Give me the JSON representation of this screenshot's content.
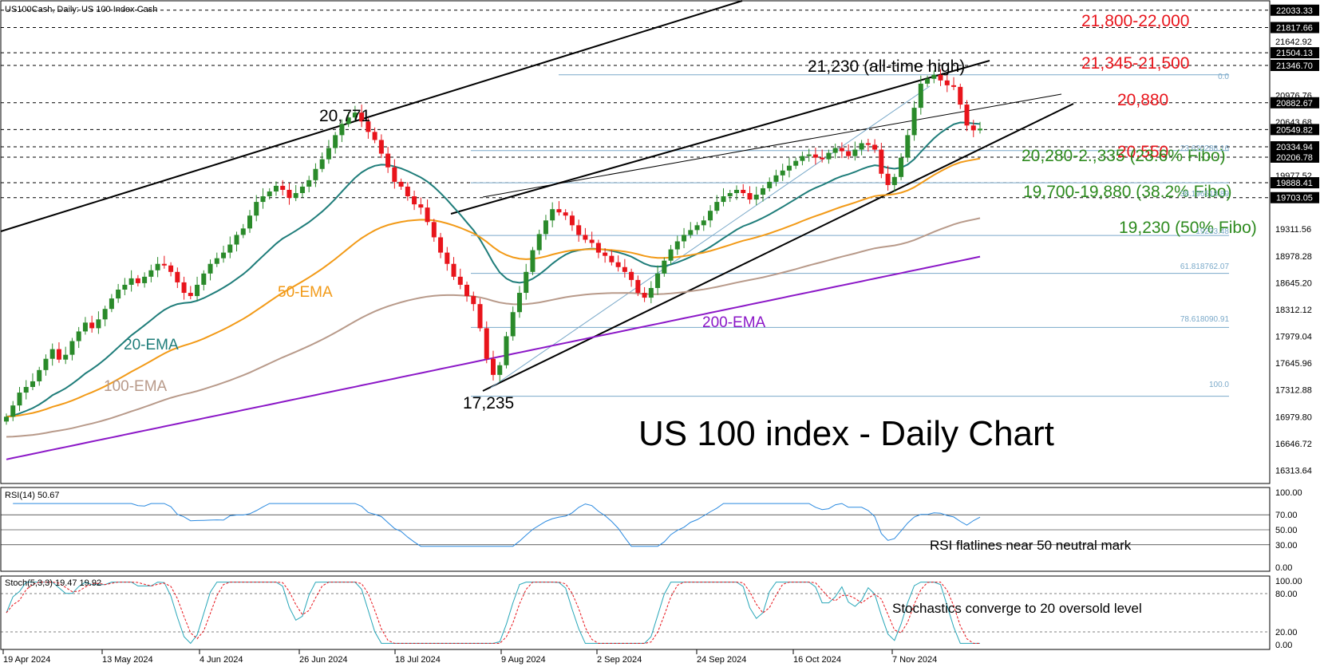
{
  "header": {
    "symbol_text": "US100Cash, Daily:  US 100 Index Cash"
  },
  "title": "US 100 index - Daily Chart",
  "colors": {
    "up": "#2a8a2a",
    "down": "#e8141b",
    "ema20": "#1f7d7a",
    "ema50": "#f29a17",
    "ema100": "#b89a8a",
    "ema200": "#8b17c7",
    "fib": "#7aa9c9",
    "rsi": "#2b8ae0",
    "stoch_main": "#27a6b8",
    "stoch_signal": "#e8141b"
  },
  "y_axis_labels": [
    "22033.33",
    "21817.66",
    "21642.92",
    "21504.13",
    "21346.70",
    "20976.76",
    "20882.67",
    "20643.68",
    "20549.82",
    "20334.94",
    "20206.78",
    "19977.52",
    "19888.41",
    "19703.05",
    "19311.56",
    "18978.28",
    "18645.20",
    "18312.12",
    "17979.04",
    "17645.96",
    "17312.88",
    "16979.80",
    "16646.72",
    "16313.64"
  ],
  "x_axis_labels": [
    "19 Apr 2024",
    "13 May 2024",
    "4 Jun 2024",
    "26 Jun 2024",
    "18 Jul 2024",
    "9 Aug 2024",
    "2 Sep 2024",
    "24 Sep 2024",
    "16 Oct 2024",
    "7 Nov 2024"
  ],
  "annotations": {
    "r_21800": "21,800-22,000",
    "r_21345": "21,345-21,500",
    "r_20880": "20,880",
    "r_20550": "20,550",
    "s_20280": "20,280-2.,335 (23.6% Fibo)",
    "s_19700": "19,700-19,880 (38.2% Fibo)",
    "s_19230": "19,230 (50% Fibo)",
    "ath": "21,230 (all-time high)",
    "peak": "20,771",
    "low": "17,235",
    "ema20_label": "20-EMA",
    "ema50_label": "50-EMA",
    "ema100_label": "100-EMA",
    "ema200_label": "200-EMA"
  },
  "fib_labels": {
    "f0": "0.0",
    "f236": "23.620288.16",
    "f382": "38.196518.89",
    "f50": "19233.48",
    "f618": "61.818762.07",
    "f786": "78.618090.91",
    "f100": "100.0"
  },
  "rsi": {
    "label": "RSI(14) 50.67",
    "axis_labels": [
      "100.00",
      "70.00",
      "50.00",
      "30.00",
      "0.00"
    ],
    "note": "RSI flatlines near 50 neutral mark"
  },
  "stoch": {
    "label": "Stoch(5,3,3) 19.47 19.92",
    "axis_labels": [
      "100.00",
      "80.00",
      "20.00",
      "0.00"
    ],
    "note": "Stochastics converge to 20 oversold level"
  },
  "chart_data": {
    "type": "line",
    "candles_close": [
      16980,
      17120,
      17280,
      17350,
      17420,
      17560,
      17700,
      17820,
      17690,
      17750,
      17920,
      18040,
      18150,
      18080,
      18190,
      18320,
      18450,
      18560,
      18620,
      18700,
      18640,
      18720,
      18800,
      18880,
      18860,
      18780,
      18650,
      18520,
      18480,
      18620,
      18760,
      18880,
      18950,
      19020,
      19120,
      19240,
      19320,
      19480,
      19650,
      19720,
      19780,
      19850,
      19800,
      19700,
      19760,
      19840,
      19920,
      20060,
      20180,
      20320,
      20480,
      20620,
      20700,
      20760,
      20650,
      20520,
      20420,
      20250,
      20080,
      19900,
      19840,
      19720,
      19620,
      19580,
      19400,
      19210,
      19020,
      18880,
      18720,
      18620,
      18480,
      18380,
      18080,
      17700,
      17500,
      17620,
      17980,
      18280,
      18520,
      18780,
      19050,
      19250,
      19420,
      19560,
      19520,
      19480,
      19360,
      19240,
      19180,
      19140,
      19020,
      18980,
      18900,
      18840,
      18780,
      18680,
      18520,
      18460,
      18580,
      18760,
      18920,
      19060,
      19160,
      19240,
      19300,
      19360,
      19420,
      19540,
      19650,
      19720,
      19760,
      19800,
      19760,
      19680,
      19740,
      19820,
      19900,
      19980,
      20040,
      20100,
      20160,
      20220,
      20240,
      20200,
      20180,
      20260,
      20320,
      20280,
      20220,
      20300,
      20380,
      20360,
      20300,
      20000,
      19860,
      19960,
      20200,
      20480,
      20820,
      21120,
      21180,
      21230,
      21160,
      21100,
      21080,
      20860,
      20600,
      20540,
      20560
    ],
    "ema20_end": 20549.82,
    "ema50_end": 20206.78,
    "ema100_end": 19703.05,
    "ema200_end": 18978.28,
    "ylim": [
      16150,
      22150
    ]
  }
}
